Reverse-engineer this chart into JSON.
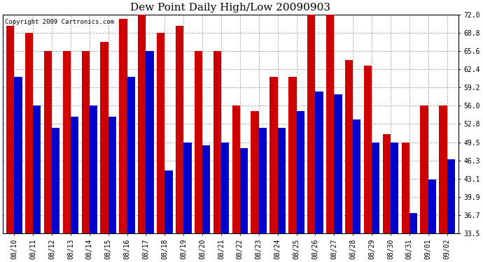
{
  "title": "Dew Point Daily High/Low 20090903",
  "copyright": "Copyright 2009 Cartronics.com",
  "dates": [
    "08/10",
    "08/11",
    "08/12",
    "08/13",
    "08/14",
    "08/15",
    "08/16",
    "08/17",
    "08/18",
    "08/19",
    "08/20",
    "08/21",
    "08/22",
    "08/23",
    "08/24",
    "08/25",
    "08/26",
    "08/27",
    "08/28",
    "08/29",
    "08/30",
    "08/31",
    "09/01",
    "09/02"
  ],
  "highs": [
    70.0,
    68.8,
    65.6,
    65.6,
    65.6,
    67.2,
    71.2,
    72.5,
    68.8,
    70.0,
    65.6,
    65.6,
    56.0,
    55.0,
    61.0,
    61.0,
    72.0,
    72.0,
    64.0,
    63.0,
    51.0,
    49.5,
    56.0,
    56.0
  ],
  "lows": [
    61.0,
    56.0,
    52.0,
    54.0,
    56.0,
    54.0,
    61.0,
    65.6,
    44.5,
    49.5,
    49.0,
    49.5,
    48.5,
    52.0,
    52.0,
    55.0,
    58.5,
    58.0,
    53.5,
    49.5,
    49.5,
    37.0,
    43.0,
    46.5
  ],
  "high_color": "#cc0000",
  "low_color": "#0000cc",
  "bg_color": "#ffffff",
  "grid_color": "#aaaaaa",
  "ylim_min": 33.5,
  "ylim_max": 72.0,
  "yticks": [
    33.5,
    36.7,
    39.9,
    43.1,
    46.3,
    49.5,
    52.8,
    56.0,
    59.2,
    62.4,
    65.6,
    68.8,
    72.0
  ],
  "title_fontsize": 11,
  "tick_fontsize": 7,
  "copyright_fontsize": 6.5,
  "fig_width": 6.9,
  "fig_height": 3.75,
  "dpi": 100
}
